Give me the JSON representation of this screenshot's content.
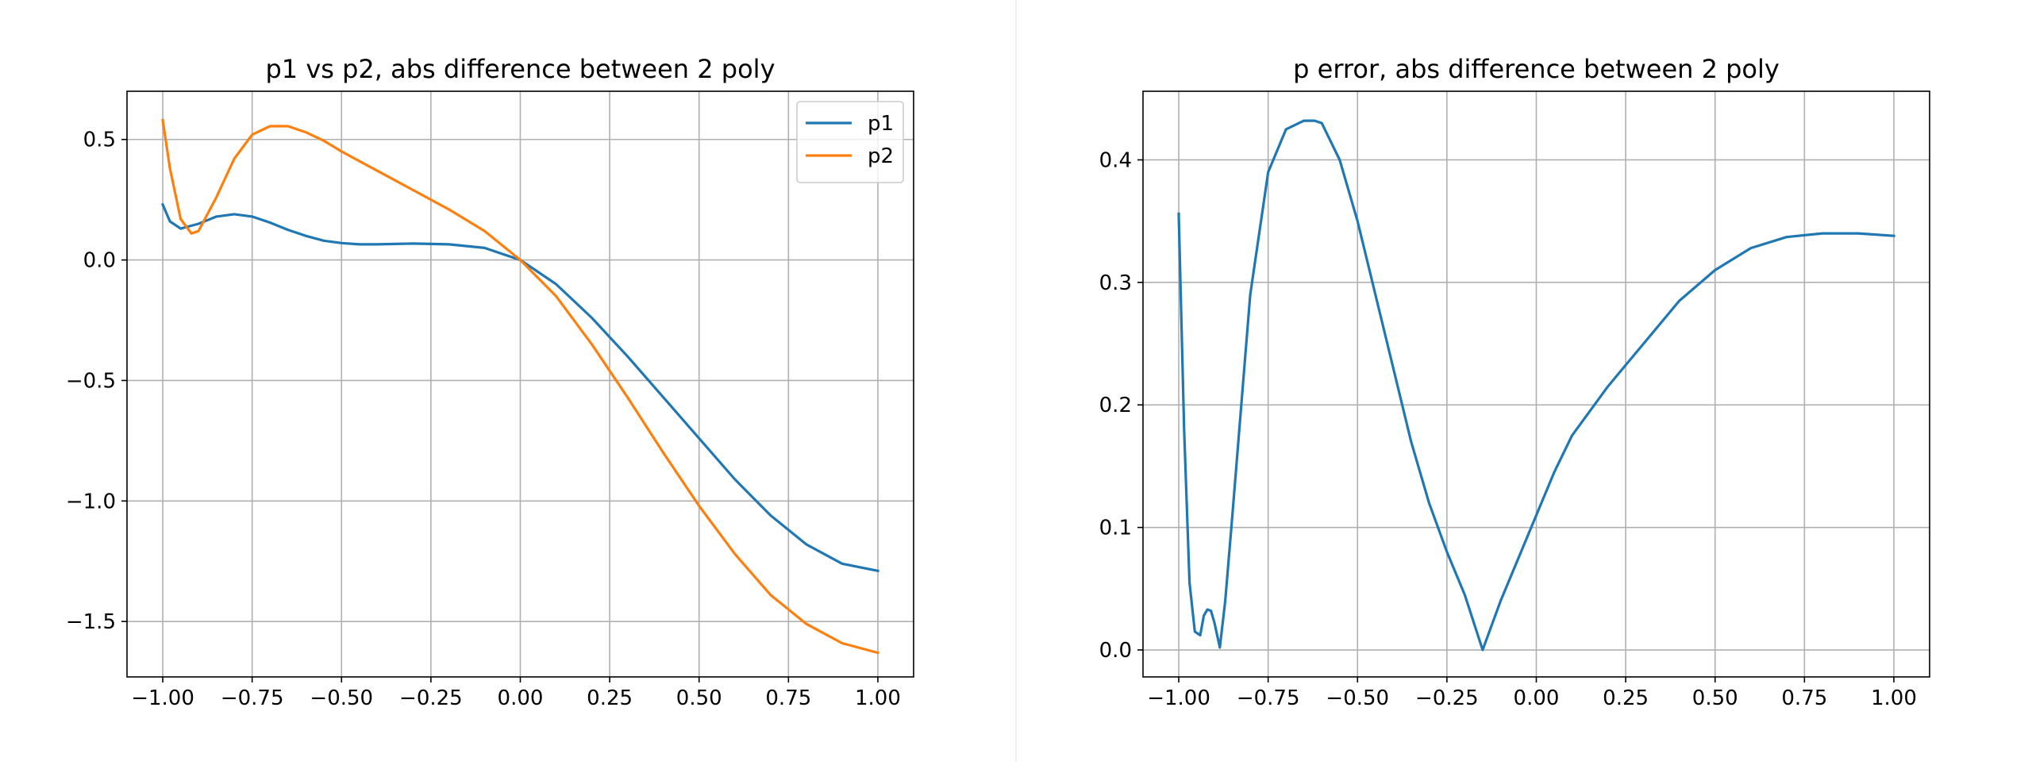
{
  "chart_data": [
    {
      "type": "line",
      "title": "p1 vs p2, abs difference between 2 poly",
      "xlabel": "",
      "ylabel": "",
      "xlim": [
        -1.1,
        1.1
      ],
      "ylim": [
        -1.73,
        0.7
      ],
      "grid": true,
      "legend": "top-right",
      "x_ticks": [
        -1.0,
        -0.75,
        -0.5,
        -0.25,
        0.0,
        0.25,
        0.5,
        0.75,
        1.0
      ],
      "x_tick_labels": [
        "−1.00",
        "−0.75",
        "−0.50",
        "−0.25",
        "0.00",
        "0.25",
        "0.50",
        "0.75",
        "1.00"
      ],
      "y_ticks": [
        0.5,
        0.0,
        -0.5,
        -1.0,
        -1.5
      ],
      "y_tick_labels": [
        "0.5",
        "0.0",
        "−0.5",
        "−1.0",
        "−1.5"
      ],
      "series": [
        {
          "name": "p1",
          "color": "#1f77b4",
          "x": [
            -1.0,
            -0.98,
            -0.95,
            -0.9,
            -0.85,
            -0.8,
            -0.75,
            -0.7,
            -0.65,
            -0.6,
            -0.55,
            -0.5,
            -0.45,
            -0.4,
            -0.3,
            -0.2,
            -0.1,
            0.0,
            0.1,
            0.2,
            0.3,
            0.4,
            0.5,
            0.6,
            0.7,
            0.8,
            0.9,
            1.0
          ],
          "y": [
            0.23,
            0.16,
            0.13,
            0.15,
            0.18,
            0.19,
            0.18,
            0.155,
            0.125,
            0.1,
            0.08,
            0.07,
            0.065,
            0.065,
            0.068,
            0.065,
            0.05,
            0.0,
            -0.1,
            -0.24,
            -0.4,
            -0.57,
            -0.74,
            -0.91,
            -1.06,
            -1.18,
            -1.26,
            -1.29
          ]
        },
        {
          "name": "p2",
          "color": "#ff7f0e",
          "x": [
            -1.0,
            -0.98,
            -0.95,
            -0.92,
            -0.9,
            -0.85,
            -0.8,
            -0.75,
            -0.7,
            -0.65,
            -0.6,
            -0.55,
            -0.5,
            -0.4,
            -0.3,
            -0.2,
            -0.1,
            0.0,
            0.1,
            0.2,
            0.3,
            0.4,
            0.5,
            0.6,
            0.7,
            0.8,
            0.9,
            1.0
          ],
          "y": [
            0.58,
            0.38,
            0.17,
            0.11,
            0.12,
            0.26,
            0.42,
            0.52,
            0.555,
            0.555,
            0.53,
            0.495,
            0.45,
            0.37,
            0.29,
            0.21,
            0.12,
            0.0,
            -0.15,
            -0.35,
            -0.57,
            -0.8,
            -1.02,
            -1.22,
            -1.39,
            -1.51,
            -1.59,
            -1.63
          ]
        }
      ]
    },
    {
      "type": "line",
      "title": "p error, abs difference between 2 poly",
      "xlabel": "",
      "ylabel": "",
      "xlim": [
        -1.1,
        1.1
      ],
      "ylim": [
        -0.022,
        0.456
      ],
      "grid": true,
      "x_ticks": [
        -1.0,
        -0.75,
        -0.5,
        -0.25,
        0.0,
        0.25,
        0.5,
        0.75,
        1.0
      ],
      "x_tick_labels": [
        "−1.00",
        "−0.75",
        "−0.50",
        "−0.25",
        "0.00",
        "0.25",
        "0.50",
        "0.75",
        "1.00"
      ],
      "y_ticks": [
        0.4,
        0.3,
        0.2,
        0.1,
        0.0
      ],
      "y_tick_labels": [
        "0.4",
        "0.3",
        "0.2",
        "0.1",
        "0.0"
      ],
      "series": [
        {
          "name": "",
          "color": "#1f77b4",
          "x": [
            -1.0,
            -0.985,
            -0.97,
            -0.955,
            -0.94,
            -0.93,
            -0.92,
            -0.91,
            -0.9,
            -0.885,
            -0.87,
            -0.85,
            -0.8,
            -0.75,
            -0.7,
            -0.65,
            -0.62,
            -0.6,
            -0.55,
            -0.5,
            -0.45,
            -0.4,
            -0.35,
            -0.3,
            -0.25,
            -0.2,
            -0.15,
            -0.1,
            -0.05,
            0.0,
            0.05,
            0.1,
            0.2,
            0.3,
            0.4,
            0.5,
            0.6,
            0.7,
            0.8,
            0.9,
            1.0
          ],
          "y": [
            0.356,
            0.18,
            0.055,
            0.015,
            0.012,
            0.028,
            0.033,
            0.032,
            0.022,
            0.002,
            0.04,
            0.11,
            0.29,
            0.39,
            0.425,
            0.432,
            0.432,
            0.43,
            0.4,
            0.35,
            0.29,
            0.23,
            0.17,
            0.12,
            0.08,
            0.045,
            0.0,
            0.04,
            0.075,
            0.11,
            0.145,
            0.175,
            0.215,
            0.25,
            0.285,
            0.31,
            0.328,
            0.337,
            0.34,
            0.34,
            0.338
          ]
        }
      ]
    }
  ]
}
